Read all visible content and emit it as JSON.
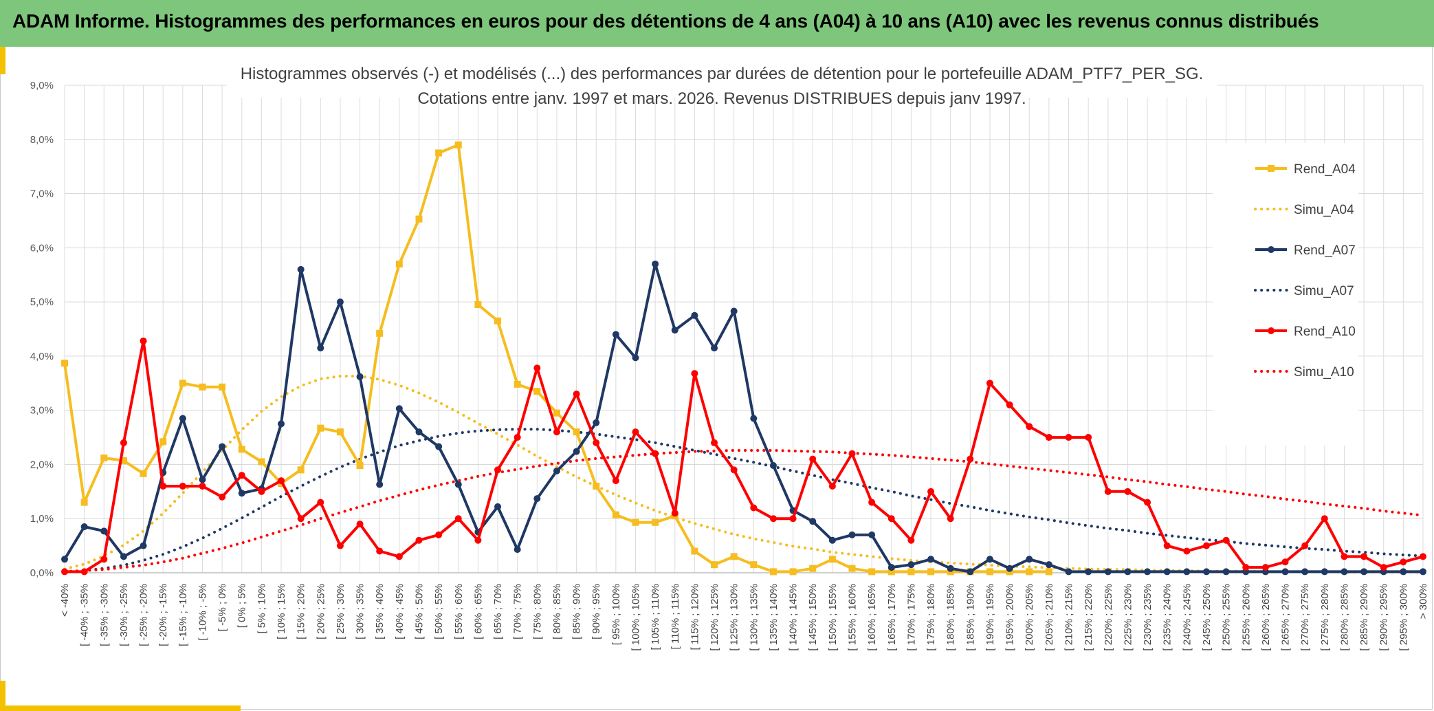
{
  "header": {
    "title": "ADAM Informe. Histogrammes des performances en euros pour des détentions de 4 ans (A04) à 10 ans (A10) avec les revenus connus distribués"
  },
  "colors": {
    "header_bg": "#7dc67b",
    "accent": "#f2c200",
    "a04": "#f5bd1f",
    "a07": "#1f3864",
    "a10": "#ff0000",
    "grid": "#d9d9d9"
  },
  "chart_data": {
    "type": "line",
    "title_line1": "Histogrammes observés (-) et modélisés (...) des performances par durées de détention pour le portefeuille ADAM_PTF7_PER_SG.",
    "title_line2": "Cotations entre janv. 1997 et mars. 2026. Revenus DISTRIBUES depuis janv 1997.",
    "xlabel": "",
    "ylabel": "",
    "ylim": [
      0,
      9
    ],
    "y_ticks": [
      "0,0%",
      "1,0%",
      "2,0%",
      "3,0%",
      "4,0%",
      "5,0%",
      "6,0%",
      "7,0%",
      "8,0%",
      "9,0%"
    ],
    "grid": true,
    "legend_position": "right",
    "categories": [
      "< -40%",
      "[ -40% ; -35%",
      "[ -35% ; -30%",
      "[ -30% ; -25%",
      "[ -25% ; -20%",
      "[ -20% ; -15%",
      "[ -15% ; -10%",
      "[ -10% ; -5%",
      "[ -5% ; 0%",
      "[ 0% ; 5%",
      "[ 5% ; 10%",
      "[ 10% ; 15%",
      "[ 15% ; 20%",
      "[ 20% ; 25%",
      "[ 25% ; 30%",
      "[ 30% ; 35%",
      "[ 35% ; 40%",
      "[ 40% ; 45%",
      "[ 45% ; 50%",
      "[ 50% ; 55%",
      "[ 55% ; 60%",
      "[ 60% ; 65%",
      "[ 65% ; 70%",
      "[ 70% ; 75%",
      "[ 75% ; 80%",
      "[ 80% ; 85%",
      "[ 85% ; 90%",
      "[ 90% ; 95%",
      "[ 95% ; 100%",
      "[ 100% ; 105%",
      "[ 105% ; 110%",
      "[ 110% ; 115%",
      "[ 115% ; 120%",
      "[ 120% ; 125%",
      "[ 125% ; 130%",
      "[ 130% ; 135%",
      "[ 135% ; 140%",
      "[ 140% ; 145%",
      "[ 145% ; 150%",
      "[ 150% ; 155%",
      "[ 155% ; 160%",
      "[ 160% ; 165%",
      "[ 165% ; 170%",
      "[ 170% ; 175%",
      "[ 175% ; 180%",
      "[ 180% ; 185%",
      "[ 185% ; 190%",
      "[ 190% ; 195%",
      "[ 195% ; 200%",
      "[ 200% ; 205%",
      "[ 205% ; 210%",
      "[ 210% ; 215%",
      "[ 215% ; 220%",
      "[ 220% ; 225%",
      "[ 225% ; 230%",
      "[ 230% ; 235%",
      "[ 235% ; 240%",
      "[ 240% ; 245%",
      "[ 245% ; 250%",
      "[ 250% ; 255%",
      "[ 255% ; 260%",
      "[ 260% ; 265%",
      "[ 265% ; 270%",
      "[ 270% ; 275%",
      "[ 275% ; 280%",
      "[ 280% ; 285%",
      "[ 285% ; 290%",
      "[ 290% ; 295%",
      "[ 295% ; 300%",
      "> 300%"
    ],
    "series": [
      {
        "name": "Rend_A04",
        "style": "solid",
        "marker": "square",
        "color": "#f5bd1f",
        "values": [
          3.87,
          1.3,
          2.12,
          2.07,
          1.83,
          2.42,
          3.5,
          3.43,
          3.43,
          2.28,
          2.05,
          1.65,
          1.9,
          2.67,
          2.6,
          1.98,
          4.42,
          5.7,
          6.53,
          7.75,
          7.9,
          4.95,
          4.65,
          3.48,
          3.35,
          2.95,
          2.6,
          1.6,
          1.07,
          0.93,
          0.93,
          1.05,
          0.4,
          0.15,
          0.3,
          0.15,
          0.02,
          0.02,
          0.08,
          0.25,
          0.08,
          0.02,
          0.02,
          0.02,
          0.02,
          0.02,
          0.02,
          0.02,
          0.02,
          0.02,
          0.02,
          null,
          null,
          null,
          null,
          null,
          null,
          null,
          null,
          null,
          null,
          null,
          null,
          null,
          null,
          null,
          null,
          null,
          null,
          null
        ]
      },
      {
        "name": "Simu_A04",
        "style": "dotted",
        "marker": "none",
        "color": "#f5bd1f",
        "values": [
          0.07,
          0.16,
          0.31,
          0.51,
          0.77,
          1.1,
          1.47,
          1.86,
          2.26,
          2.64,
          2.98,
          3.25,
          3.45,
          3.58,
          3.63,
          3.63,
          3.57,
          3.46,
          3.32,
          3.15,
          2.96,
          2.76,
          2.56,
          2.36,
          2.15,
          1.96,
          1.77,
          1.6,
          1.44,
          1.29,
          1.15,
          1.02,
          0.91,
          0.81,
          0.71,
          0.63,
          0.56,
          0.49,
          0.44,
          0.38,
          0.34,
          0.3,
          0.26,
          0.23,
          0.2,
          0.18,
          0.16,
          0.14,
          0.12,
          0.11,
          0.09,
          0.08,
          0.07,
          0.06,
          0.06,
          0.05,
          0.04,
          0.04,
          0.03,
          0.03,
          0.03,
          0.02,
          0.02,
          0.02,
          0.02,
          0.01,
          0.01,
          0.01,
          0.01,
          0.01
        ]
      },
      {
        "name": "Rend_A07",
        "style": "solid",
        "marker": "circle",
        "color": "#1f3864",
        "values": [
          0.25,
          0.85,
          0.77,
          0.3,
          0.5,
          1.85,
          2.85,
          1.72,
          2.33,
          1.47,
          1.55,
          2.75,
          5.6,
          4.15,
          5.0,
          3.62,
          1.63,
          3.03,
          2.6,
          2.33,
          1.63,
          0.75,
          1.22,
          0.43,
          1.37,
          1.88,
          2.24,
          2.77,
          4.4,
          3.97,
          5.7,
          4.48,
          4.75,
          4.15,
          4.83,
          2.85,
          1.98,
          1.15,
          0.95,
          0.6,
          0.7,
          0.7,
          0.1,
          0.15,
          0.25,
          0.08,
          0.02,
          0.25,
          0.08,
          0.25,
          0.15,
          0.02,
          0.02,
          0.02,
          0.02,
          0.02,
          0.02,
          0.02,
          0.02,
          0.02,
          0.02,
          0.02,
          0.02,
          0.02,
          0.02,
          0.02,
          0.02,
          0.02,
          0.02,
          0.02
        ]
      },
      {
        "name": "Simu_A07",
        "style": "dotted",
        "marker": "none",
        "color": "#1f3864",
        "values": [
          0.02,
          0.04,
          0.08,
          0.14,
          0.23,
          0.34,
          0.48,
          0.64,
          0.82,
          1.01,
          1.21,
          1.41,
          1.6,
          1.78,
          1.95,
          2.1,
          2.23,
          2.35,
          2.44,
          2.52,
          2.58,
          2.62,
          2.64,
          2.65,
          2.65,
          2.63,
          2.6,
          2.56,
          2.51,
          2.46,
          2.4,
          2.33,
          2.26,
          2.19,
          2.11,
          2.04,
          1.96,
          1.88,
          1.8,
          1.72,
          1.65,
          1.57,
          1.5,
          1.42,
          1.35,
          1.28,
          1.22,
          1.15,
          1.09,
          1.03,
          0.98,
          0.92,
          0.87,
          0.82,
          0.78,
          0.73,
          0.69,
          0.65,
          0.61,
          0.58,
          0.54,
          0.51,
          0.48,
          0.45,
          0.43,
          0.4,
          0.38,
          0.35,
          0.33,
          0.31
        ]
      },
      {
        "name": "Rend_A10",
        "style": "solid",
        "marker": "circle",
        "color": "#ff0000",
        "values": [
          0.02,
          0.02,
          0.25,
          2.4,
          4.28,
          1.6,
          1.6,
          1.6,
          1.4,
          1.8,
          1.5,
          1.7,
          1.0,
          1.3,
          0.5,
          0.9,
          0.4,
          0.3,
          0.6,
          0.7,
          1.0,
          0.6,
          1.9,
          2.5,
          3.78,
          2.6,
          3.3,
          2.4,
          1.7,
          2.6,
          2.2,
          1.1,
          3.68,
          2.4,
          1.9,
          1.2,
          1.0,
          1.0,
          2.1,
          1.6,
          2.2,
          1.3,
          1.0,
          0.6,
          1.5,
          1.0,
          2.1,
          3.5,
          3.1,
          2.7,
          2.5,
          2.5,
          2.5,
          1.5,
          1.5,
          1.3,
          0.5,
          0.4,
          0.5,
          0.6,
          0.1,
          0.1,
          0.2,
          0.5,
          1.0,
          0.3,
          0.3,
          0.1,
          0.2,
          0.3
        ]
      },
      {
        "name": "Simu_A10",
        "style": "dotted",
        "marker": "none",
        "color": "#ff0000",
        "values": [
          0.02,
          0.04,
          0.06,
          0.1,
          0.14,
          0.2,
          0.27,
          0.36,
          0.45,
          0.55,
          0.66,
          0.77,
          0.88,
          1.0,
          1.11,
          1.22,
          1.33,
          1.43,
          1.53,
          1.62,
          1.7,
          1.78,
          1.85,
          1.91,
          1.97,
          2.02,
          2.07,
          2.11,
          2.14,
          2.17,
          2.2,
          2.22,
          2.24,
          2.25,
          2.26,
          2.26,
          2.26,
          2.25,
          2.24,
          2.23,
          2.21,
          2.19,
          2.17,
          2.14,
          2.11,
          2.08,
          2.05,
          2.01,
          1.97,
          1.93,
          1.89,
          1.85,
          1.81,
          1.77,
          1.72,
          1.68,
          1.63,
          1.59,
          1.54,
          1.5,
          1.45,
          1.41,
          1.36,
          1.32,
          1.27,
          1.23,
          1.19,
          1.14,
          1.1,
          1.06
        ]
      }
    ]
  }
}
